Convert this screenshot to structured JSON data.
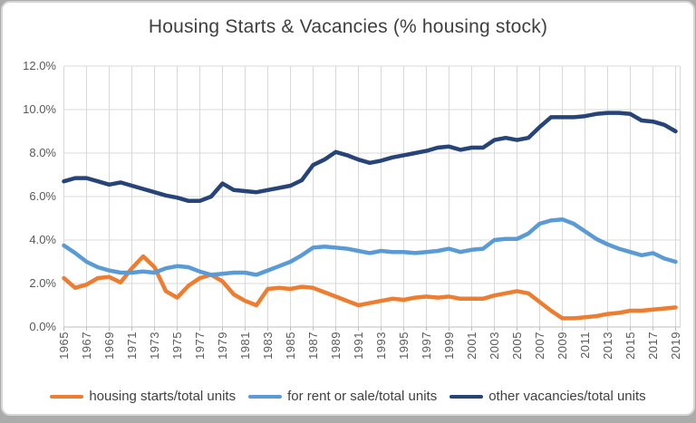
{
  "window": {
    "outer_background": "#ababab",
    "card_background": "#ffffff",
    "card_border": "#d6d6d6"
  },
  "chart_data": {
    "type": "line",
    "title": "Housing Starts & Vacancies (% housing stock)",
    "xlabel": "",
    "ylabel": "",
    "ylim": [
      0,
      12
    ],
    "grid": true,
    "legend_position": "bottom",
    "axis_label_color": "#595959",
    "gridline_color": "#d9d9d9",
    "years": [
      1965,
      1966,
      1967,
      1968,
      1969,
      1970,
      1971,
      1972,
      1973,
      1974,
      1975,
      1976,
      1977,
      1978,
      1979,
      1980,
      1981,
      1982,
      1983,
      1984,
      1985,
      1986,
      1987,
      1988,
      1989,
      1990,
      1991,
      1992,
      1993,
      1994,
      1995,
      1996,
      1997,
      1998,
      1999,
      2000,
      2001,
      2002,
      2003,
      2004,
      2005,
      2006,
      2007,
      2008,
      2009,
      2010,
      2011,
      2012,
      2013,
      2014,
      2015,
      2016,
      2017,
      2018,
      2019
    ],
    "x_tick_labels": [
      "1965",
      "1967",
      "1969",
      "1971",
      "1973",
      "1975",
      "1977",
      "1979",
      "1981",
      "1983",
      "1985",
      "1987",
      "1989",
      "1991",
      "1993",
      "1995",
      "1997",
      "1999",
      "2001",
      "2003",
      "2005",
      "2007",
      "2009",
      "2011",
      "2013",
      "2015",
      "2017",
      "2019"
    ],
    "y_tick_labels": [
      "0.0%",
      "2.0%",
      "4.0%",
      "6.0%",
      "8.0%",
      "10.0%",
      "12.0%"
    ],
    "series": [
      {
        "name": "housing starts/total units",
        "color": "#ED7D31",
        "values": [
          2.25,
          1.8,
          1.95,
          2.25,
          2.3,
          2.05,
          2.7,
          3.25,
          2.75,
          1.65,
          1.35,
          1.9,
          2.25,
          2.4,
          2.1,
          1.5,
          1.2,
          1.0,
          1.75,
          1.8,
          1.75,
          1.85,
          1.8,
          1.6,
          1.4,
          1.2,
          1.0,
          1.1,
          1.2,
          1.3,
          1.25,
          1.35,
          1.4,
          1.35,
          1.4,
          1.3,
          1.3,
          1.3,
          1.45,
          1.55,
          1.65,
          1.55,
          1.15,
          0.75,
          0.4,
          0.4,
          0.45,
          0.5,
          0.6,
          0.65,
          0.75,
          0.75,
          0.8,
          0.85,
          0.9
        ]
      },
      {
        "name": "for rent or sale/total units",
        "color": "#5B9BD5",
        "values": [
          3.75,
          3.4,
          3.0,
          2.75,
          2.6,
          2.5,
          2.5,
          2.55,
          2.5,
          2.7,
          2.8,
          2.75,
          2.55,
          2.4,
          2.45,
          2.5,
          2.5,
          2.4,
          2.6,
          2.8,
          3.0,
          3.3,
          3.65,
          3.7,
          3.65,
          3.6,
          3.5,
          3.4,
          3.5,
          3.45,
          3.45,
          3.4,
          3.45,
          3.5,
          3.6,
          3.45,
          3.55,
          3.6,
          4.0,
          4.05,
          4.05,
          4.3,
          4.75,
          4.9,
          4.95,
          4.75,
          4.4,
          4.05,
          3.8,
          3.6,
          3.45,
          3.3,
          3.4,
          3.15,
          3.0
        ]
      },
      {
        "name": "other vacancies/total units",
        "color": "#264478",
        "values": [
          6.7,
          6.85,
          6.85,
          6.7,
          6.55,
          6.65,
          6.5,
          6.35,
          6.2,
          6.05,
          5.95,
          5.8,
          5.8,
          6.0,
          6.6,
          6.3,
          6.25,
          6.2,
          6.3,
          6.4,
          6.5,
          6.75,
          7.45,
          7.7,
          8.05,
          7.9,
          7.7,
          7.55,
          7.65,
          7.8,
          7.9,
          8.0,
          8.1,
          8.25,
          8.3,
          8.15,
          8.25,
          8.25,
          8.6,
          8.7,
          8.6,
          8.7,
          9.2,
          9.65,
          9.65,
          9.65,
          9.7,
          9.8,
          9.85,
          9.85,
          9.8,
          9.5,
          9.45,
          9.3,
          9.0
        ]
      }
    ]
  }
}
